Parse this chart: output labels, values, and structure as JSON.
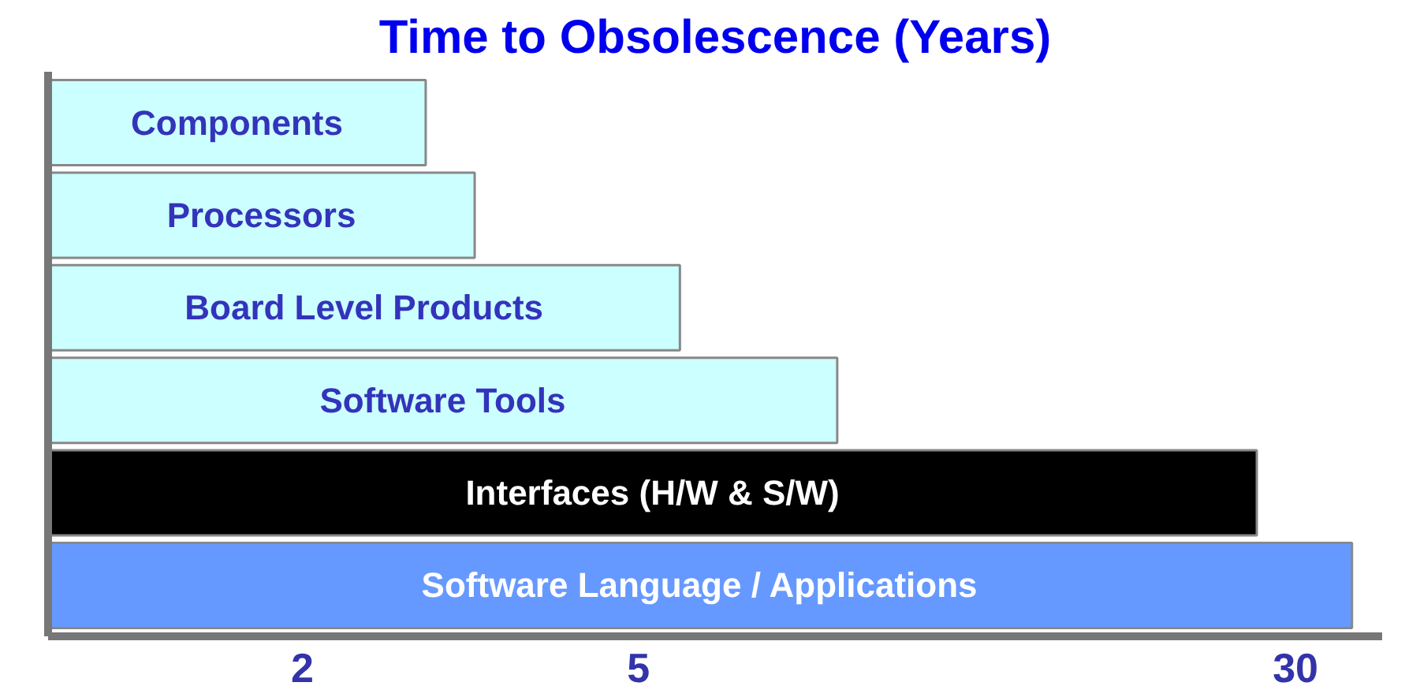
{
  "chart_data": {
    "type": "bar",
    "orientation": "horizontal",
    "title": "Time to Obsolescence (Years)",
    "categories": [
      "Components",
      "Processors",
      "Board Level Products",
      "Software Tools",
      "Interfaces (H/W & S/W)",
      "Software Language / Applications"
    ],
    "values": [
      2.8,
      3.2,
      5.6,
      8.6,
      27,
      35
    ],
    "colors": [
      "#ccffff",
      "#ccffff",
      "#ccffff",
      "#ccffff",
      "#000000",
      "#6699ff"
    ],
    "log": "x",
    "xlim": [
      1,
      38
    ],
    "xticks": [
      2,
      5,
      30
    ],
    "grid": false,
    "tick_labels": "x"
  }
}
